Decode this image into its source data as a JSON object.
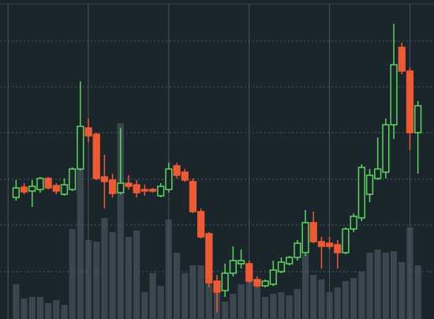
{
  "chart_data": {
    "type": "candlestick",
    "x": [
      0,
      1,
      2,
      3,
      4,
      5,
      6,
      7,
      8,
      9,
      10,
      11,
      12,
      13,
      14,
      15,
      16,
      17,
      18,
      19,
      20,
      21,
      22,
      23,
      24,
      25,
      26,
      27,
      28,
      29,
      30,
      31,
      32,
      33,
      34,
      35,
      36,
      37,
      38,
      39,
      40,
      41,
      42,
      43,
      44,
      45,
      46,
      47,
      48,
      49,
      50
    ],
    "xlim": [
      -2,
      52
    ],
    "xticks": [
      -1,
      9,
      19,
      29,
      39,
      49
    ],
    "ylim": [
      0,
      404
    ],
    "yticks": [
      60,
      119,
      177,
      236,
      294,
      352
    ],
    "grid": true,
    "up_color": "#5cd65c",
    "down_color": "#ef5a32",
    "volume_color": "#3b464e",
    "open": [
      154,
      167,
      162,
      164,
      178,
      169,
      158,
      164,
      190,
      242,
      234,
      180,
      176,
      160,
      172,
      170,
      164,
      164,
      156,
      164,
      194,
      186,
      174,
      136,
      108,
      48,
      36,
      58,
      70,
      70,
      50,
      42,
      44,
      60,
      70,
      78,
      84,
      122,
      98,
      96,
      94,
      84,
      114,
      128,
      158,
      178,
      186,
      246,
      344,
      314,
      236
    ],
    "high": [
      176,
      172,
      176,
      180,
      180,
      172,
      178,
      192,
      301,
      254,
      236,
      208,
      184,
      242,
      182,
      176,
      170,
      166,
      172,
      198,
      198,
      190,
      178,
      140,
      110,
      56,
      70,
      92,
      88,
      74,
      54,
      50,
      74,
      78,
      80,
      100,
      138,
      136,
      104,
      104,
      100,
      116,
      134,
      196,
      190,
      230,
      254,
      374,
      350,
      318,
      276
    ],
    "low": [
      150,
      158,
      142,
      160,
      164,
      158,
      156,
      162,
      188,
      224,
      176,
      140,
      154,
      158,
      164,
      154,
      156,
      160,
      154,
      160,
      178,
      174,
      134,
      102,
      40,
      8,
      28,
      54,
      64,
      46,
      40,
      40,
      42,
      58,
      68,
      74,
      80,
      96,
      64,
      88,
      64,
      82,
      110,
      124,
      148,
      176,
      178,
      228,
      310,
      214,
      184
    ],
    "close": [
      166,
      161,
      168,
      178,
      166,
      162,
      170,
      190,
      244,
      232,
      178,
      174,
      159,
      172,
      168,
      160,
      162,
      162,
      168,
      190,
      182,
      176,
      136,
      104,
      46,
      34,
      58,
      74,
      74,
      48,
      42,
      48,
      62,
      72,
      78,
      96,
      122,
      98,
      92,
      92,
      84,
      114,
      130,
      192,
      182,
      190,
      246,
      322,
      314,
      236,
      270
    ],
    "volume": [
      44,
      26,
      28,
      28,
      20,
      24,
      18,
      114,
      214,
      100,
      98,
      128,
      110,
      248,
      104,
      112,
      34,
      58,
      42,
      126,
      84,
      58,
      68,
      68,
      108,
      36,
      22,
      32,
      44,
      52,
      42,
      28,
      32,
      34,
      30,
      38,
      82,
      56,
      50,
      34,
      40,
      48,
      52,
      60,
      84,
      88,
      84,
      86,
      72,
      116,
      68
    ]
  }
}
